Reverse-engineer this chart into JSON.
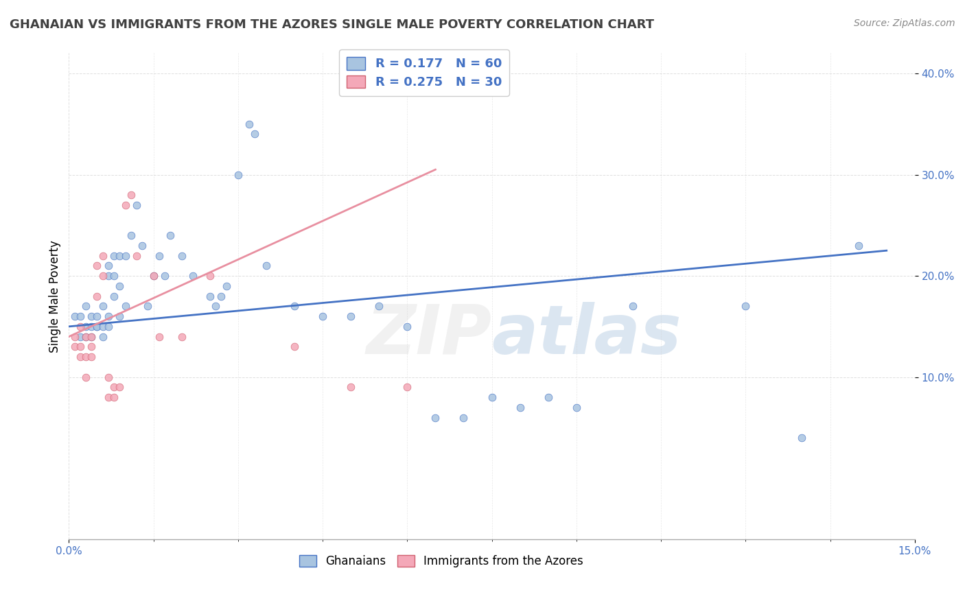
{
  "title": "GHANAIAN VS IMMIGRANTS FROM THE AZORES SINGLE MALE POVERTY CORRELATION CHART",
  "source_text": "Source: ZipAtlas.com",
  "xlabel": "",
  "ylabel": "Single Male Poverty",
  "xlim": [
    0.0,
    0.15
  ],
  "ylim": [
    -0.06,
    0.42
  ],
  "ytick_labels": [
    "10.0%",
    "20.0%",
    "30.0%",
    "40.0%"
  ],
  "xtick_labels": [
    "0.0%",
    "15.0%"
  ],
  "legend_r1": "R = 0.177   N = 60",
  "legend_r2": "R = 0.275   N = 30",
  "blue_color": "#a8c4e0",
  "pink_color": "#f4a8b8",
  "blue_line_color": "#4472c4",
  "pink_line_color": "#e88fa0",
  "blue_scatter": [
    [
      0.001,
      0.16
    ],
    [
      0.002,
      0.14
    ],
    [
      0.002,
      0.16
    ],
    [
      0.003,
      0.15
    ],
    [
      0.003,
      0.14
    ],
    [
      0.003,
      0.17
    ],
    [
      0.004,
      0.15
    ],
    [
      0.004,
      0.16
    ],
    [
      0.004,
      0.14
    ],
    [
      0.005,
      0.15
    ],
    [
      0.005,
      0.16
    ],
    [
      0.005,
      0.15
    ],
    [
      0.006,
      0.14
    ],
    [
      0.006,
      0.15
    ],
    [
      0.006,
      0.17
    ],
    [
      0.007,
      0.21
    ],
    [
      0.007,
      0.2
    ],
    [
      0.007,
      0.16
    ],
    [
      0.007,
      0.15
    ],
    [
      0.008,
      0.22
    ],
    [
      0.008,
      0.2
    ],
    [
      0.008,
      0.18
    ],
    [
      0.009,
      0.22
    ],
    [
      0.009,
      0.19
    ],
    [
      0.009,
      0.16
    ],
    [
      0.01,
      0.22
    ],
    [
      0.01,
      0.17
    ],
    [
      0.011,
      0.24
    ],
    [
      0.012,
      0.27
    ],
    [
      0.013,
      0.23
    ],
    [
      0.014,
      0.17
    ],
    [
      0.015,
      0.2
    ],
    [
      0.016,
      0.22
    ],
    [
      0.017,
      0.2
    ],
    [
      0.018,
      0.24
    ],
    [
      0.02,
      0.22
    ],
    [
      0.022,
      0.2
    ],
    [
      0.025,
      0.18
    ],
    [
      0.026,
      0.17
    ],
    [
      0.027,
      0.18
    ],
    [
      0.028,
      0.19
    ],
    [
      0.03,
      0.3
    ],
    [
      0.032,
      0.35
    ],
    [
      0.033,
      0.34
    ],
    [
      0.035,
      0.21
    ],
    [
      0.04,
      0.17
    ],
    [
      0.045,
      0.16
    ],
    [
      0.05,
      0.16
    ],
    [
      0.055,
      0.17
    ],
    [
      0.06,
      0.15
    ],
    [
      0.065,
      0.06
    ],
    [
      0.07,
      0.06
    ],
    [
      0.075,
      0.08
    ],
    [
      0.08,
      0.07
    ],
    [
      0.085,
      0.08
    ],
    [
      0.09,
      0.07
    ],
    [
      0.1,
      0.17
    ],
    [
      0.12,
      0.17
    ],
    [
      0.13,
      0.04
    ],
    [
      0.14,
      0.23
    ]
  ],
  "pink_scatter": [
    [
      0.001,
      0.13
    ],
    [
      0.001,
      0.14
    ],
    [
      0.002,
      0.15
    ],
    [
      0.002,
      0.13
    ],
    [
      0.002,
      0.12
    ],
    [
      0.003,
      0.14
    ],
    [
      0.003,
      0.12
    ],
    [
      0.003,
      0.1
    ],
    [
      0.004,
      0.14
    ],
    [
      0.004,
      0.13
    ],
    [
      0.004,
      0.12
    ],
    [
      0.005,
      0.18
    ],
    [
      0.005,
      0.21
    ],
    [
      0.006,
      0.2
    ],
    [
      0.006,
      0.22
    ],
    [
      0.007,
      0.08
    ],
    [
      0.007,
      0.1
    ],
    [
      0.008,
      0.08
    ],
    [
      0.008,
      0.09
    ],
    [
      0.009,
      0.09
    ],
    [
      0.01,
      0.27
    ],
    [
      0.011,
      0.28
    ],
    [
      0.012,
      0.22
    ],
    [
      0.015,
      0.2
    ],
    [
      0.016,
      0.14
    ],
    [
      0.02,
      0.14
    ],
    [
      0.025,
      0.2
    ],
    [
      0.04,
      0.13
    ],
    [
      0.05,
      0.09
    ],
    [
      0.06,
      0.09
    ]
  ],
  "blue_reg": [
    0.0,
    0.15,
    0.145,
    0.225
  ],
  "pink_reg": [
    0.0,
    0.14,
    0.065,
    0.305
  ],
  "background_color": "#ffffff",
  "grid_color": "#d0d0d0"
}
